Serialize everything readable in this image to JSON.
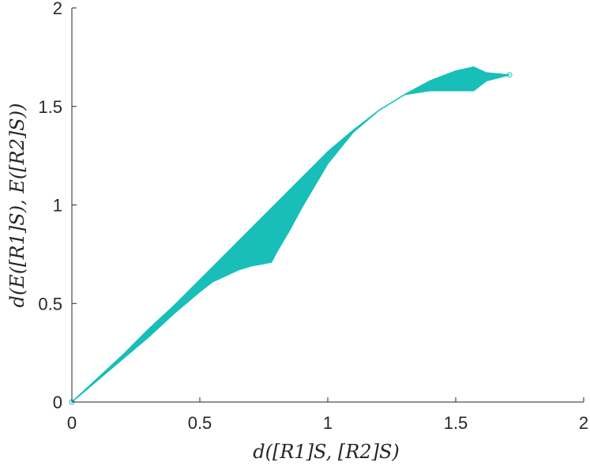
{
  "chart_data": {
    "type": "area",
    "title": "",
    "xlabel": "d([R1]S, [R2]S)",
    "ylabel": "d(E([R1]S), E([R2]S))",
    "xlim": [
      0,
      2
    ],
    "ylim": [
      0,
      2
    ],
    "xticks": [
      "0",
      "0.5",
      "1",
      "1.5",
      "2"
    ],
    "yticks": [
      "0",
      "0.5",
      "1",
      "1.5",
      "2"
    ],
    "grid": false,
    "legend": "none",
    "fill_color": "#17bfb8",
    "series": [
      {
        "upper": {
          "x": [
            0,
            0.1,
            0.2,
            0.3,
            0.4,
            0.5,
            0.6,
            0.7,
            0.8,
            0.9,
            1.0,
            1.1,
            1.2,
            1.3,
            1.4,
            1.5,
            1.57,
            1.62,
            1.71
          ],
          "y": [
            0,
            0.12,
            0.24,
            0.37,
            0.49,
            0.62,
            0.75,
            0.88,
            1.01,
            1.14,
            1.27,
            1.38,
            1.48,
            1.56,
            1.63,
            1.68,
            1.7,
            1.67,
            1.66
          ]
        },
        "lower": {
          "x": [
            0,
            0.1,
            0.2,
            0.3,
            0.4,
            0.5,
            0.55,
            0.6,
            0.65,
            0.7,
            0.74,
            0.78,
            0.8,
            0.85,
            0.9,
            1.0,
            1.1,
            1.2,
            1.3,
            1.4,
            1.5,
            1.57,
            1.62,
            1.71
          ],
          "y": [
            0,
            0.11,
            0.22,
            0.33,
            0.45,
            0.56,
            0.61,
            0.64,
            0.67,
            0.69,
            0.7,
            0.71,
            0.76,
            0.87,
            0.99,
            1.21,
            1.37,
            1.48,
            1.56,
            1.58,
            1.58,
            1.58,
            1.63,
            1.66
          ]
        }
      }
    ]
  }
}
